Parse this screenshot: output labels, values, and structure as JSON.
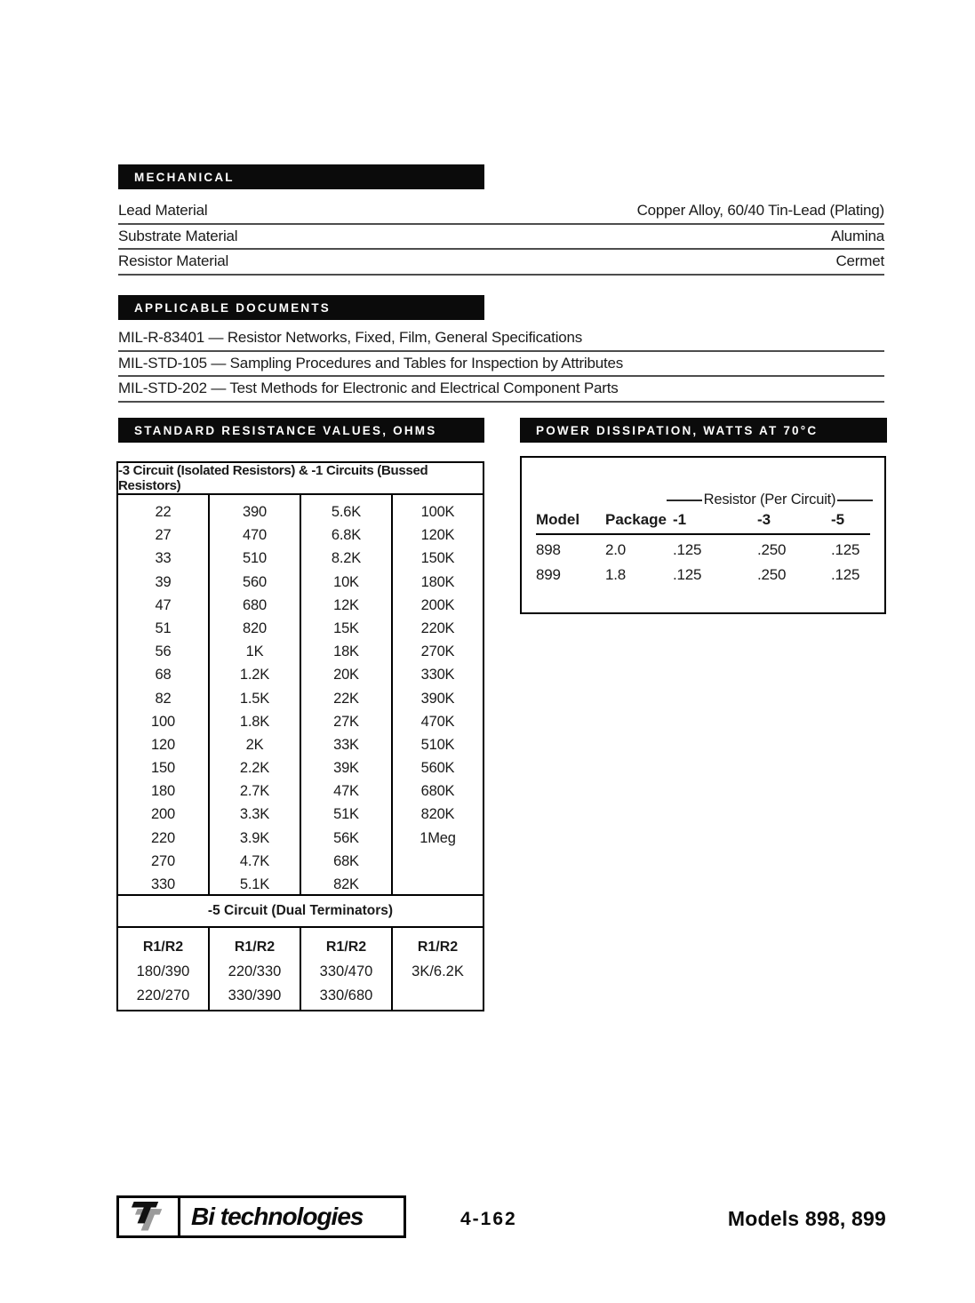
{
  "sections": {
    "mechanical": {
      "title": "MECHANICAL",
      "rows": [
        {
          "label": "Lead Material",
          "value": "Copper Alloy, 60/40 Tin-Lead (Plating)"
        },
        {
          "label": "Substrate Material",
          "value": "Alumina"
        },
        {
          "label": "Resistor Material",
          "value": "Cermet"
        }
      ]
    },
    "applicable_documents": {
      "title": "APPLICABLE DOCUMENTS",
      "rows": [
        "MIL-R-83401 — Resistor Networks, Fixed, Film, General Specifications",
        "MIL-STD-105 — Sampling Procedures and Tables for Inspection by Attributes",
        "MIL-STD-202 — Test Methods for Electronic and Electrical Component Parts"
      ]
    },
    "resistance": {
      "title": "STANDARD RESISTANCE VALUES, OHMS",
      "table_header": "-3 Circuit (Isolated Resistors) & -1 Circuits (Bussed Resistors)",
      "columns": [
        [
          "22",
          "27",
          "33",
          "39",
          "47",
          "51",
          "56",
          "68",
          "82",
          "100",
          "120",
          "150",
          "180",
          "200",
          "220",
          "270",
          "330"
        ],
        [
          "390",
          "470",
          "510",
          "560",
          "680",
          "820",
          "1K",
          "1.2K",
          "1.5K",
          "1.8K",
          "2K",
          "2.2K",
          "2.7K",
          "3.3K",
          "3.9K",
          "4.7K",
          "5.1K"
        ],
        [
          "5.6K",
          "6.8K",
          "8.2K",
          "10K",
          "12K",
          "15K",
          "18K",
          "20K",
          "22K",
          "27K",
          "33K",
          "39K",
          "47K",
          "51K",
          "56K",
          "68K",
          "82K"
        ],
        [
          "100K",
          "120K",
          "150K",
          "180K",
          "200K",
          "220K",
          "270K",
          "330K",
          "390K",
          "470K",
          "510K",
          "560K",
          "680K",
          "820K",
          "1Meg"
        ]
      ],
      "dual_header": "-5 Circuit (Dual Terminators)",
      "dual_columns": [
        {
          "header": "R1/R2",
          "values": [
            "180/390",
            "220/270"
          ]
        },
        {
          "header": "R1/R2",
          "values": [
            "220/330",
            "330/390"
          ]
        },
        {
          "header": "R1/R2",
          "values": [
            "330/470",
            "330/680"
          ]
        },
        {
          "header": "R1/R2",
          "values": [
            "3K/6.2K"
          ]
        }
      ]
    },
    "power": {
      "title": "POWER DISSIPATION, WATTS AT 70°C",
      "group_header": "Resistor (Per Circuit)",
      "columns": [
        "Model",
        "Package",
        "-1",
        "-3",
        "-5"
      ],
      "rows": [
        [
          "898",
          "2.0",
          ".125",
          ".250",
          ".125"
        ],
        [
          "899",
          "1.8",
          ".125",
          ".250",
          ".125"
        ]
      ]
    }
  },
  "footer": {
    "brand": "Bi technologies",
    "page_number": "4-162",
    "models": "Models 898, 899"
  },
  "colors": {
    "bar_background": "#0b0b0b",
    "bar_text": "#ffffff",
    "logo_gray": "#9b9b9b",
    "logo_black": "#111111"
  }
}
